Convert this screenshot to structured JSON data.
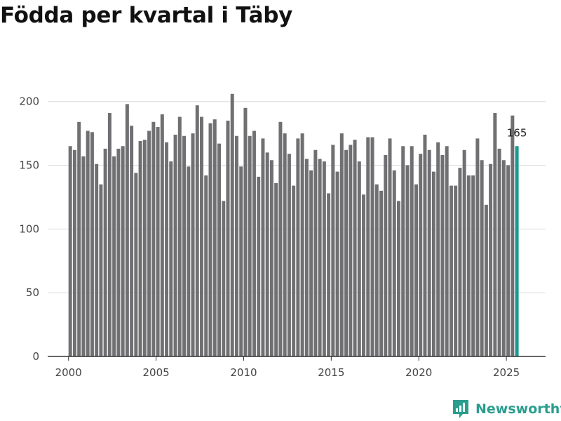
{
  "chart_data": {
    "type": "bar",
    "title": "Födda per kvartal i Täby",
    "xlabel": "",
    "ylabel": "",
    "ylim": [
      0,
      220
    ],
    "yticks": [
      0,
      50,
      100,
      150,
      200
    ],
    "xticks": [
      2000,
      2005,
      2010,
      2015,
      2020,
      2025
    ],
    "first_period": {
      "year": 2000,
      "quarter": 1
    },
    "values": [
      165,
      162,
      184,
      157,
      177,
      176,
      151,
      135,
      163,
      191,
      157,
      163,
      165,
      198,
      181,
      144,
      169,
      170,
      177,
      184,
      180,
      190,
      168,
      153,
      174,
      188,
      173,
      149,
      175,
      197,
      188,
      142,
      183,
      186,
      167,
      122,
      185,
      206,
      173,
      149,
      195,
      173,
      177,
      141,
      171,
      160,
      154,
      136,
      184,
      175,
      159,
      134,
      171,
      175,
      155,
      146,
      162,
      155,
      153,
      128,
      166,
      145,
      175,
      162,
      166,
      170,
      153,
      127,
      172,
      172,
      135,
      130,
      158,
      171,
      146,
      122,
      165,
      150,
      165,
      135,
      159,
      174,
      162,
      145,
      168,
      158,
      165,
      134,
      134,
      148,
      162,
      142,
      142,
      171,
      154,
      119,
      151,
      191,
      163,
      154,
      150,
      189,
      165
    ],
    "highlight_index": 102,
    "highlight_label": "165",
    "bar_color": "#707073",
    "highlight_color": "#19998f",
    "grid": true
  },
  "branding": {
    "name": "Newsworthy",
    "color": "#2a9d8f"
  }
}
